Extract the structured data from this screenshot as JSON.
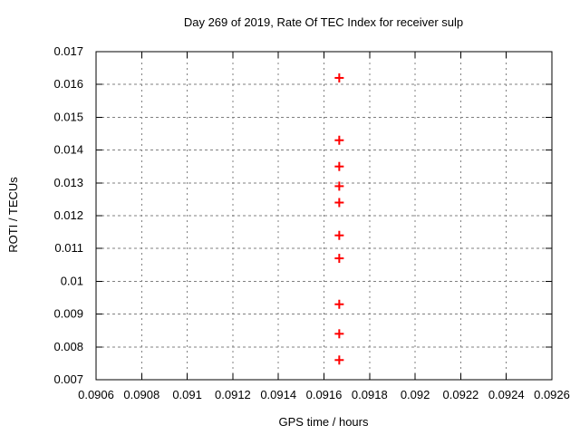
{
  "figure": {
    "background": "#ffffff",
    "border_color": "#000000",
    "grid_color": "#808080",
    "text_color": "#000000"
  },
  "chart_data": {
    "type": "scatter",
    "title": "Day 269 of 2019, Rate Of TEC Index for receiver sulp",
    "xlabel": "GPS time / hours",
    "ylabel": "ROTI / TECUs",
    "xlim": [
      0.0906,
      0.0926
    ],
    "ylim": [
      0.007,
      0.017
    ],
    "grid": true,
    "legend": "none",
    "x_ticks": [
      {
        "value": 0.0906,
        "label": "0.0906"
      },
      {
        "value": 0.0908,
        "label": "0.0908"
      },
      {
        "value": 0.091,
        "label": "0.091"
      },
      {
        "value": 0.0912,
        "label": "0.0912"
      },
      {
        "value": 0.0914,
        "label": "0.0914"
      },
      {
        "value": 0.0916,
        "label": "0.0916"
      },
      {
        "value": 0.0918,
        "label": "0.0918"
      },
      {
        "value": 0.092,
        "label": "0.092"
      },
      {
        "value": 0.0922,
        "label": "0.0922"
      },
      {
        "value": 0.0924,
        "label": "0.0924"
      },
      {
        "value": 0.0926,
        "label": "0.0926"
      }
    ],
    "y_ticks": [
      {
        "value": 0.017,
        "label": "0.017"
      },
      {
        "value": 0.016,
        "label": "0.016"
      },
      {
        "value": 0.015,
        "label": "0.015"
      },
      {
        "value": 0.014,
        "label": "0.014"
      },
      {
        "value": 0.013,
        "label": "0.013"
      },
      {
        "value": 0.012,
        "label": "0.012"
      },
      {
        "value": 0.011,
        "label": "0.011"
      },
      {
        "value": 0.01,
        "label": "0.01"
      },
      {
        "value": 0.009,
        "label": "0.009"
      },
      {
        "value": 0.008,
        "label": "0.008"
      },
      {
        "value": 0.007,
        "label": "0.007"
      }
    ],
    "marker": {
      "shape": "plus",
      "color": "#ff0000",
      "size": 10,
      "stroke_width": 2
    },
    "series": [
      {
        "name": "ROTI",
        "x": [
          0.091667,
          0.091667,
          0.091667,
          0.091667,
          0.091667,
          0.091667,
          0.091667,
          0.091667,
          0.091667,
          0.091667
        ],
        "y": [
          0.0162,
          0.0143,
          0.0135,
          0.0129,
          0.0124,
          0.0114,
          0.0107,
          0.0093,
          0.0084,
          0.0076
        ]
      }
    ]
  }
}
